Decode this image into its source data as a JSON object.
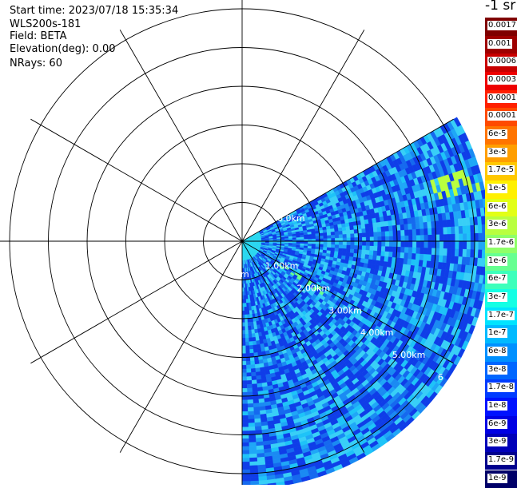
{
  "header": {
    "start_time": "Start time: 2023/07/18 15:35:34",
    "instrument": "WLS200s-181",
    "field": "Field: BETA",
    "elevation": "Elevation(deg): 0.00",
    "nrays": "NRays: 60"
  },
  "colorbar": {
    "unit_label": "-1 sr",
    "entries": [
      {
        "label": "0.0017",
        "color": "#7f0000"
      },
      {
        "label": "0.001",
        "color": "#9e0000"
      },
      {
        "label": "0.0006",
        "color": "#c80000"
      },
      {
        "label": "0.0003",
        "color": "#ee0000"
      },
      {
        "label": "0.00017",
        "color": "#ff2000"
      },
      {
        "label": "0.0001",
        "color": "#ff4a00"
      },
      {
        "label": "6e-5",
        "color": "#ff7400"
      },
      {
        "label": "3e-5",
        "color": "#ff9e00"
      },
      {
        "label": "1.7e-5",
        "color": "#ffc800"
      },
      {
        "label": "1e-5",
        "color": "#fff000"
      },
      {
        "label": "6e-6",
        "color": "#e2ff16"
      },
      {
        "label": "3e-6",
        "color": "#b9ff3f"
      },
      {
        "label": "1.7e-6",
        "color": "#8fff68"
      },
      {
        "label": "1e-6",
        "color": "#66ff91"
      },
      {
        "label": "6e-7",
        "color": "#3dffbb"
      },
      {
        "label": "3e-7",
        "color": "#14ffe4"
      },
      {
        "label": "1.7e-7",
        "color": "#00e4ff"
      },
      {
        "label": "1e-7",
        "color": "#00baff"
      },
      {
        "label": "6e-8",
        "color": "#0090ff"
      },
      {
        "label": "3e-8",
        "color": "#0066ff"
      },
      {
        "label": "1.7e-8",
        "color": "#003cff"
      },
      {
        "label": "1e-8",
        "color": "#0012ff"
      },
      {
        "label": "6e-9",
        "color": "#0000e3"
      },
      {
        "label": "3e-9",
        "color": "#0000b8"
      },
      {
        "label": "1.7e-9",
        "color": "#00008d"
      },
      {
        "label": "1e-9",
        "color": "#000068"
      }
    ]
  },
  "chart_data": {
    "type": "heatmap",
    "projection": "polar (PPI)",
    "range_rings": [
      "1.00km",
      "2.00km",
      "3.00km",
      "4.00km",
      "5.00km",
      "6"
    ],
    "partial_ring_labels": [
      "0.0km",
      "m"
    ],
    "ring_spacing_km": 1.0,
    "max_range_km": 6.3,
    "spoke_angles_deg": [
      0,
      30,
      60,
      90,
      120,
      150,
      180,
      210,
      240,
      270,
      300,
      330
    ],
    "scan_sector_deg": {
      "from_math_deg": 30,
      "to_math_deg": -90
    },
    "background_value": "1e-7",
    "features": [
      {
        "description": "near-field high backscatter",
        "range_km": [
          0.0,
          0.5
        ],
        "value": "6e-7"
      },
      {
        "description": "aerosol band",
        "range_km": [
          1.0,
          2.5
        ],
        "bearing_deg": 122,
        "value": "1e-6"
      },
      {
        "description": "aerosol band",
        "range_km": [
          5.0,
          6.2
        ],
        "bearing_deg": 75,
        "value": "3e-6"
      }
    ],
    "grid": true,
    "legend": "right colorbar"
  }
}
